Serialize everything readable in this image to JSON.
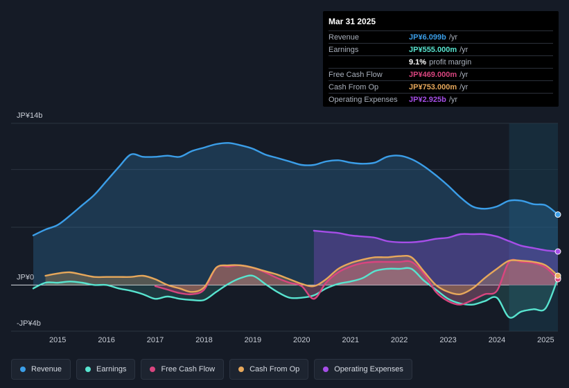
{
  "tooltip": {
    "date": "Mar 31 2025",
    "rows": [
      {
        "label": "Revenue",
        "value": "JP¥6.099b",
        "unit": "/yr",
        "color": "#3b9ee8"
      },
      {
        "label": "Earnings",
        "value": "JP¥555.000m",
        "unit": "/yr",
        "color": "#58e4cf"
      },
      {
        "label": "",
        "value": "9.1%",
        "unit": "profit margin",
        "color": "#ffffff"
      },
      {
        "label": "Free Cash Flow",
        "value": "JP¥469.000m",
        "unit": "/yr",
        "color": "#d9457f"
      },
      {
        "label": "Cash From Op",
        "value": "JP¥753.000m",
        "unit": "/yr",
        "color": "#e7a85b"
      },
      {
        "label": "Operating Expenses",
        "value": "JP¥2.925b",
        "unit": "/yr",
        "color": "#a64ee8"
      }
    ]
  },
  "legend": [
    {
      "label": "Revenue",
      "color": "#3b9ee8"
    },
    {
      "label": "Earnings",
      "color": "#58e4cf"
    },
    {
      "label": "Free Cash Flow",
      "color": "#d9457f"
    },
    {
      "label": "Cash From Op",
      "color": "#e7a85b"
    },
    {
      "label": "Operating Expenses",
      "color": "#a64ee8"
    }
  ],
  "chart_data": {
    "type": "area",
    "title": "",
    "y_tick_labels": [
      "JP¥14b",
      "JP¥0",
      "-JP¥4b"
    ],
    "ylim": [
      -4,
      14
    ],
    "xlim": [
      2014.5,
      2025.25
    ],
    "x_tick_labels": [
      "2015",
      "2016",
      "2017",
      "2018",
      "2019",
      "2020",
      "2021",
      "2022",
      "2023",
      "2024",
      "2025"
    ],
    "x_ticks": [
      2015,
      2016,
      2017,
      2018,
      2019,
      2020,
      2021,
      2022,
      2023,
      2024,
      2025
    ],
    "highlight_range": [
      2024.25,
      2025.25
    ],
    "series": [
      {
        "name": "Revenue",
        "color": "#3b9ee8",
        "points": [
          [
            2014.5,
            4.3
          ],
          [
            2014.75,
            4.8
          ],
          [
            2015.0,
            5.2
          ],
          [
            2015.25,
            6.0
          ],
          [
            2015.5,
            6.9
          ],
          [
            2015.75,
            7.8
          ],
          [
            2016.0,
            9.0
          ],
          [
            2016.25,
            10.2
          ],
          [
            2016.5,
            11.3
          ],
          [
            2016.75,
            11.1
          ],
          [
            2017.0,
            11.1
          ],
          [
            2017.25,
            11.2
          ],
          [
            2017.5,
            11.1
          ],
          [
            2017.75,
            11.6
          ],
          [
            2018.0,
            11.9
          ],
          [
            2018.25,
            12.2
          ],
          [
            2018.5,
            12.3
          ],
          [
            2018.75,
            12.1
          ],
          [
            2019.0,
            11.8
          ],
          [
            2019.25,
            11.3
          ],
          [
            2019.5,
            11.0
          ],
          [
            2019.75,
            10.7
          ],
          [
            2020.0,
            10.4
          ],
          [
            2020.25,
            10.4
          ],
          [
            2020.5,
            10.7
          ],
          [
            2020.75,
            10.8
          ],
          [
            2021.0,
            10.6
          ],
          [
            2021.25,
            10.5
          ],
          [
            2021.5,
            10.6
          ],
          [
            2021.75,
            11.1
          ],
          [
            2022.0,
            11.2
          ],
          [
            2022.25,
            10.9
          ],
          [
            2022.5,
            10.3
          ],
          [
            2022.75,
            9.5
          ],
          [
            2023.0,
            8.6
          ],
          [
            2023.25,
            7.6
          ],
          [
            2023.5,
            6.8
          ],
          [
            2023.75,
            6.6
          ],
          [
            2024.0,
            6.8
          ],
          [
            2024.25,
            7.3
          ],
          [
            2024.5,
            7.3
          ],
          [
            2024.75,
            7.0
          ],
          [
            2025.0,
            6.9
          ],
          [
            2025.25,
            6.1
          ]
        ]
      },
      {
        "name": "Earnings",
        "color": "#58e4cf",
        "points": [
          [
            2014.5,
            -0.3
          ],
          [
            2014.75,
            0.2
          ],
          [
            2015.0,
            0.2
          ],
          [
            2015.25,
            0.3
          ],
          [
            2015.5,
            0.2
          ],
          [
            2015.75,
            0.0
          ],
          [
            2016.0,
            0.0
          ],
          [
            2016.25,
            -0.3
          ],
          [
            2016.5,
            -0.5
          ],
          [
            2016.75,
            -0.8
          ],
          [
            2017.0,
            -1.2
          ],
          [
            2017.25,
            -1.0
          ],
          [
            2017.5,
            -1.2
          ],
          [
            2017.75,
            -1.3
          ],
          [
            2018.0,
            -1.3
          ],
          [
            2018.25,
            -0.6
          ],
          [
            2018.5,
            0.1
          ],
          [
            2018.75,
            0.6
          ],
          [
            2019.0,
            0.8
          ],
          [
            2019.25,
            0.1
          ],
          [
            2019.5,
            -0.6
          ],
          [
            2019.75,
            -1.1
          ],
          [
            2020.0,
            -1.1
          ],
          [
            2020.25,
            -0.9
          ],
          [
            2020.5,
            -0.3
          ],
          [
            2020.75,
            0.1
          ],
          [
            2021.0,
            0.3
          ],
          [
            2021.25,
            0.6
          ],
          [
            2021.5,
            1.2
          ],
          [
            2021.75,
            1.4
          ],
          [
            2022.0,
            1.4
          ],
          [
            2022.25,
            1.4
          ],
          [
            2022.5,
            0.4
          ],
          [
            2022.75,
            -0.4
          ],
          [
            2023.0,
            -1.2
          ],
          [
            2023.25,
            -1.6
          ],
          [
            2023.5,
            -1.7
          ],
          [
            2023.75,
            -1.4
          ],
          [
            2024.0,
            -1.1
          ],
          [
            2024.25,
            -2.8
          ],
          [
            2024.5,
            -2.3
          ],
          [
            2024.75,
            -2.1
          ],
          [
            2025.0,
            -2.0
          ],
          [
            2025.25,
            0.6
          ]
        ]
      },
      {
        "name": "Free Cash Flow",
        "color": "#d9457f",
        "points": [
          [
            2017.0,
            -0.1
          ],
          [
            2017.25,
            -0.4
          ],
          [
            2017.5,
            -0.7
          ],
          [
            2017.75,
            -0.8
          ],
          [
            2018.0,
            -0.4
          ],
          [
            2018.25,
            1.5
          ],
          [
            2018.5,
            1.6
          ],
          [
            2018.75,
            1.7
          ],
          [
            2019.0,
            1.5
          ],
          [
            2019.25,
            1.1
          ],
          [
            2019.5,
            0.6
          ],
          [
            2019.75,
            0.2
          ],
          [
            2020.0,
            -0.1
          ],
          [
            2020.25,
            -1.2
          ],
          [
            2020.5,
            0.2
          ],
          [
            2020.75,
            1.1
          ],
          [
            2021.0,
            1.6
          ],
          [
            2021.25,
            1.9
          ],
          [
            2021.5,
            2.0
          ],
          [
            2021.75,
            2.0
          ],
          [
            2022.0,
            2.0
          ],
          [
            2022.25,
            2.0
          ],
          [
            2022.5,
            1.0
          ],
          [
            2022.75,
            -0.6
          ],
          [
            2023.0,
            -1.4
          ],
          [
            2023.25,
            -1.7
          ],
          [
            2023.5,
            -1.3
          ],
          [
            2023.75,
            -0.8
          ],
          [
            2024.0,
            -0.5
          ],
          [
            2024.25,
            2.0
          ],
          [
            2024.5,
            2.0
          ],
          [
            2024.75,
            1.9
          ],
          [
            2025.0,
            1.5
          ],
          [
            2025.25,
            0.5
          ]
        ]
      },
      {
        "name": "Cash From Op",
        "color": "#e7a85b",
        "points": [
          [
            2014.75,
            0.8
          ],
          [
            2015.0,
            1.0
          ],
          [
            2015.25,
            1.1
          ],
          [
            2015.5,
            0.9
          ],
          [
            2015.75,
            0.7
          ],
          [
            2016.0,
            0.7
          ],
          [
            2016.25,
            0.7
          ],
          [
            2016.5,
            0.7
          ],
          [
            2016.75,
            0.8
          ],
          [
            2017.0,
            0.5
          ],
          [
            2017.25,
            0.0
          ],
          [
            2017.5,
            -0.3
          ],
          [
            2017.75,
            -0.6
          ],
          [
            2018.0,
            -0.2
          ],
          [
            2018.25,
            1.5
          ],
          [
            2018.5,
            1.7
          ],
          [
            2018.75,
            1.7
          ],
          [
            2019.0,
            1.5
          ],
          [
            2019.25,
            1.2
          ],
          [
            2019.5,
            0.9
          ],
          [
            2019.75,
            0.5
          ],
          [
            2020.0,
            0.1
          ],
          [
            2020.25,
            -0.1
          ],
          [
            2020.5,
            0.5
          ],
          [
            2020.75,
            1.4
          ],
          [
            2021.0,
            1.9
          ],
          [
            2021.25,
            2.2
          ],
          [
            2021.5,
            2.4
          ],
          [
            2021.75,
            2.4
          ],
          [
            2022.0,
            2.5
          ],
          [
            2022.25,
            2.4
          ],
          [
            2022.5,
            1.2
          ],
          [
            2022.75,
            0.0
          ],
          [
            2023.0,
            -0.6
          ],
          [
            2023.25,
            -0.8
          ],
          [
            2023.5,
            -0.3
          ],
          [
            2023.75,
            0.6
          ],
          [
            2024.0,
            1.4
          ],
          [
            2024.25,
            2.1
          ],
          [
            2024.5,
            2.1
          ],
          [
            2024.75,
            2.0
          ],
          [
            2025.0,
            1.7
          ],
          [
            2025.25,
            0.8
          ]
        ]
      },
      {
        "name": "Operating Expenses",
        "color": "#a64ee8",
        "points": [
          [
            2020.25,
            4.7
          ],
          [
            2020.5,
            4.6
          ],
          [
            2020.75,
            4.5
          ],
          [
            2021.0,
            4.3
          ],
          [
            2021.25,
            4.2
          ],
          [
            2021.5,
            4.1
          ],
          [
            2021.75,
            3.8
          ],
          [
            2022.0,
            3.7
          ],
          [
            2022.25,
            3.7
          ],
          [
            2022.5,
            3.8
          ],
          [
            2022.75,
            4.0
          ],
          [
            2023.0,
            4.1
          ],
          [
            2023.25,
            4.4
          ],
          [
            2023.5,
            4.4
          ],
          [
            2023.75,
            4.4
          ],
          [
            2024.0,
            4.2
          ],
          [
            2024.25,
            3.8
          ],
          [
            2024.5,
            3.4
          ],
          [
            2024.75,
            3.2
          ],
          [
            2025.0,
            3.0
          ],
          [
            2025.25,
            2.9
          ]
        ]
      }
    ]
  }
}
